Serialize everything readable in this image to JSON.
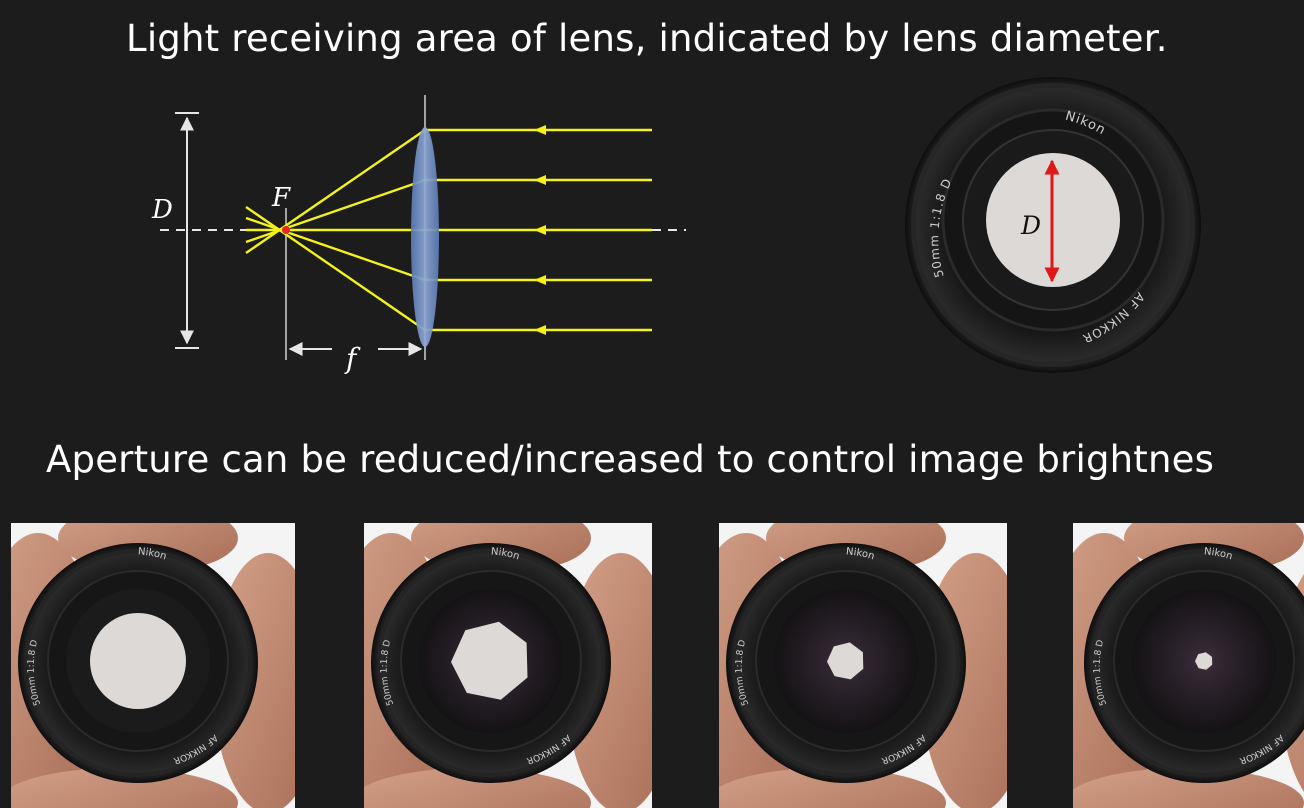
{
  "slide": {
    "title_top": "Light receiving area of lens, indicated by lens diameter.",
    "title_bottom": "Aperture can be reduced/increased to control image brightnes"
  },
  "optics_diagram": {
    "diameter_label": "D",
    "focal_point_label": "F",
    "focal_length_label": "f",
    "ray_color": "#f5f219",
    "lens_color": "#6f8fc4",
    "focal_point_color": "#e8262a"
  },
  "lens_photo": {
    "brand": "Nikon",
    "spec": "50mm 1:1.8 D",
    "model": "AF NIKKOR",
    "diameter_label": "D",
    "arrow_color": "#e01818"
  },
  "aperture_photos": {
    "brand": "Nikon",
    "spec": "50mm 1:1.8 D",
    "model": "AF NIKKOR",
    "openings": [
      {
        "shape": "round"
      },
      {
        "shape": "heptagon"
      },
      {
        "shape": "heptagon"
      },
      {
        "shape": "heptagon"
      }
    ]
  }
}
